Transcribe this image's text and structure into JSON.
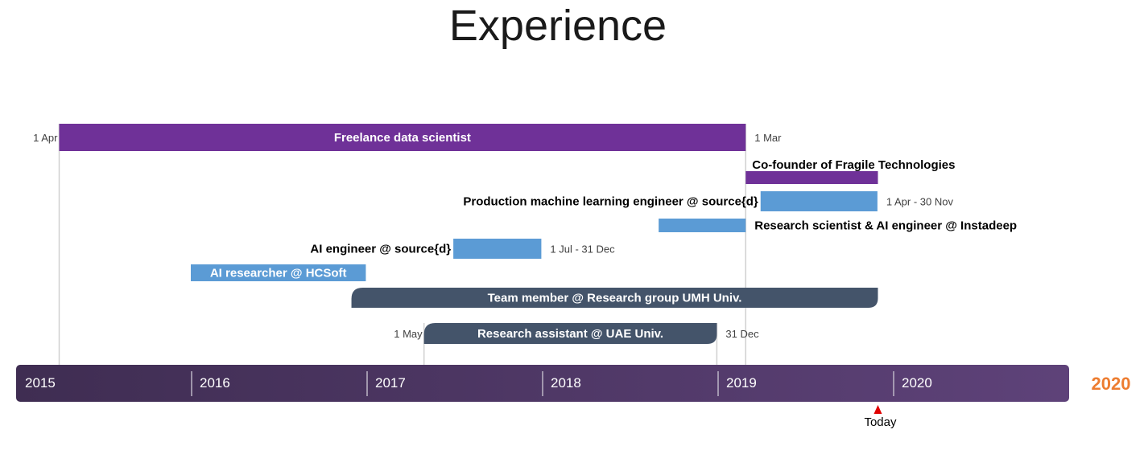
{
  "title": "Experience",
  "colors": {
    "purple": "#6f3198",
    "blue": "#5b9bd5",
    "slate": "#44546a",
    "axis_band_start": "#3f2d52",
    "axis_band_end": "#5e4279",
    "end_year_label": "#ed7d31",
    "today_marker": "#e00000",
    "guide_line": "#d0d0d0",
    "axis_tick": "#bdb6c6",
    "axis_text": "#ffffff",
    "dark_text": "#000000",
    "date_text": "#404040"
  },
  "chart_data": {
    "type": "gantt",
    "title": "Experience",
    "x_axis": {
      "type": "date",
      "year_labels": [
        "2015",
        "2016",
        "2017",
        "2018",
        "2019",
        "2020"
      ],
      "end_label": "2020",
      "today_label": "Today",
      "today_date": "2019-12-01"
    },
    "tasks": [
      {
        "name": "Freelance data scientist",
        "start": "2015-04-01",
        "end": "2019-03-01",
        "color": "purple",
        "style": "bar",
        "label_position": "inside",
        "start_label": "1 Apr",
        "end_label": "1 Mar",
        "guides": true
      },
      {
        "name": "Co-founder of Fragile Technologies",
        "start": "2019-03-01",
        "end": "2019-12-01",
        "color": "purple",
        "style": "thin",
        "label_position": "above-start",
        "start_label": "",
        "end_label": ""
      },
      {
        "name": "Production machine learning engineer @ source{d}",
        "start": "2019-04-01",
        "end": "2019-11-30",
        "color": "blue",
        "style": "bar",
        "label_position": "left",
        "date_label": "1 Apr - 30 Nov"
      },
      {
        "name": "Research scientist & AI engineer @ Instadeep",
        "start": "2018-09-01",
        "end": "2019-03-01",
        "color": "blue",
        "style": "thin",
        "label_position": "right"
      },
      {
        "name": "AI engineer @ source{d}",
        "start": "2017-07-01",
        "end": "2017-12-31",
        "color": "blue",
        "style": "bar",
        "label_position": "left",
        "date_label": "1 Jul - 31 Dec"
      },
      {
        "name": "AI researcher @ HCSoft",
        "start": "2016-01-01",
        "end": "2016-12-31",
        "color": "blue",
        "style": "bar",
        "label_position": "inside"
      },
      {
        "name": "Team member @ Research group UMH Univ.",
        "start": "2016-12-01",
        "end": "2019-12-01",
        "color": "slate",
        "style": "rounded",
        "label_position": "inside"
      },
      {
        "name": "Research assistant @ UAE Univ.",
        "start": "2017-05-01",
        "end": "2018-12-31",
        "color": "slate",
        "style": "rounded",
        "label_position": "inside",
        "start_label": "1 May",
        "end_label": "31 Dec",
        "guides": true
      }
    ]
  }
}
